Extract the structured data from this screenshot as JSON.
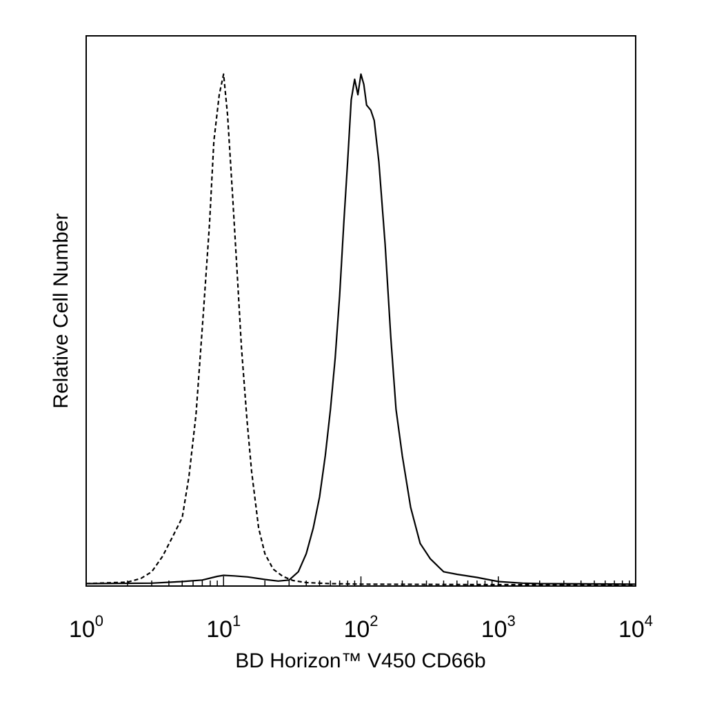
{
  "chart_data": {
    "type": "line",
    "title": "",
    "xlabel": "BD Horizon™ V450 CD66b",
    "ylabel": "Relative Cell Number",
    "x_scale": "log",
    "xlim": [
      1,
      10000
    ],
    "ylim": [
      0,
      100
    ],
    "y_ticks_labeled": false,
    "grid": false,
    "legend": "none",
    "x_tick_labels": [
      {
        "value": 1,
        "base": "10",
        "exp": "0"
      },
      {
        "value": 10,
        "base": "10",
        "exp": "1"
      },
      {
        "value": 100,
        "base": "10",
        "exp": "2"
      },
      {
        "value": 1000,
        "base": "10",
        "exp": "3"
      },
      {
        "value": 10000,
        "base": "10",
        "exp": "4"
      }
    ],
    "series": [
      {
        "line_style": "dashed",
        "color": "#000000",
        "x": [
          1,
          2,
          2.5,
          3,
          3.6,
          4.2,
          5,
          5.6,
          6.3,
          7.1,
          7.9,
          8.5,
          9.3,
          10,
          10.7,
          11.6,
          12.6,
          13.5,
          14.8,
          16,
          18,
          20,
          23,
          27,
          32,
          40,
          60,
          100,
          300,
          1000,
          10000
        ],
        "y": [
          0.2,
          0.5,
          1.2,
          2.5,
          5.5,
          9,
          13,
          21,
          33,
          52,
          70,
          86,
          95,
          99,
          91,
          76,
          60,
          46,
          32,
          22,
          11,
          6,
          3,
          1.6,
          0.8,
          0.4,
          0.2,
          0.1,
          0.05,
          0,
          0
        ]
      },
      {
        "line_style": "solid",
        "color": "#000000",
        "x": [
          1,
          3,
          5,
          7,
          9,
          10,
          12,
          15,
          20,
          25,
          30,
          35,
          40,
          45,
          50,
          55,
          60,
          65,
          70,
          75,
          80,
          85,
          90,
          95,
          100,
          105,
          110,
          118,
          125,
          135,
          150,
          165,
          180,
          200,
          230,
          270,
          320,
          350,
          400,
          500,
          700,
          1000,
          1500,
          2000,
          10000
        ],
        "y": [
          0.2,
          0.3,
          0.6,
          0.9,
          1.6,
          1.8,
          1.7,
          1.5,
          1.0,
          0.7,
          0.9,
          2.5,
          6,
          11,
          17,
          25,
          34,
          44,
          56,
          70,
          82,
          94,
          98,
          95,
          99,
          97,
          93,
          92,
          90,
          82,
          66,
          48,
          34,
          25,
          15,
          8,
          5,
          4,
          2.5,
          2,
          1.4,
          0.6,
          0.3,
          0.2,
          0.1
        ]
      }
    ]
  }
}
